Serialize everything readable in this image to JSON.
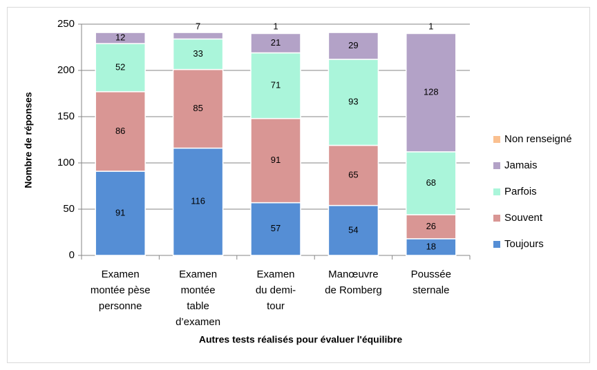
{
  "chart_data": {
    "type": "bar",
    "stacked": true,
    "xlabel": "Autres tests réalisés pour évaluer l'équilibre",
    "ylabel": "Nombre de réponses",
    "categories": [
      "Examen\nmontée pèse\npersonne",
      "Examen\nmontée\ntable\nd’examen",
      "Examen\ndu demi-\ntour",
      "Manœuvre\nde Romberg",
      "Poussée\nsternale"
    ],
    "series": [
      {
        "name": "Toujours",
        "color": "#558ed5",
        "values": [
          91,
          116,
          57,
          54,
          18
        ]
      },
      {
        "name": "Souvent",
        "color": "#d99694",
        "values": [
          86,
          85,
          91,
          65,
          26
        ]
      },
      {
        "name": "Parfois",
        "color": "#aaf5da",
        "values": [
          52,
          33,
          71,
          93,
          68
        ]
      },
      {
        "name": "Jamais",
        "color": "#b3a2c7",
        "values": [
          12,
          7,
          21,
          29,
          128
        ]
      },
      {
        "name": "Non renseigné",
        "color": "#fac090",
        "values": [
          null,
          null,
          1,
          null,
          1
        ]
      }
    ],
    "ylim": [
      0,
      250
    ],
    "yticks": [
      0,
      50,
      100,
      150,
      200,
      250
    ],
    "grid": true,
    "legend": "right"
  }
}
